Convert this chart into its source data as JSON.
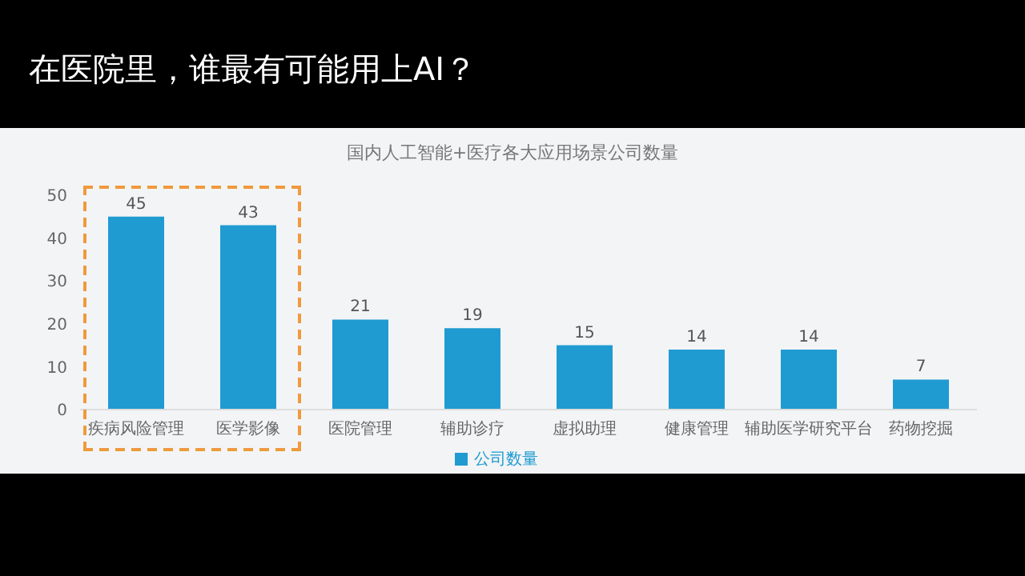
{
  "chart_data": {
    "type": "bar",
    "title": "在医院里，谁最有可能用上AI？",
    "subtitle": "国内人工智能+医疗各大应用场景公司数量",
    "categories": [
      "疾病风险管理",
      "医学影像",
      "医院管理",
      "辅助诊疗",
      "虚拟助理",
      "健康管理",
      "辅助医学研究平台",
      "药物挖掘"
    ],
    "series": [
      {
        "name": "公司数量",
        "color": "#1f9bd1",
        "values": [
          45,
          43,
          21,
          19,
          15,
          14,
          14,
          7
        ]
      }
    ],
    "ylim": [
      0,
      50
    ],
    "yticks": [
      0,
      10,
      20,
      30,
      40,
      50
    ],
    "grid": false,
    "legend": "bottom",
    "data_labels": true
  }
}
